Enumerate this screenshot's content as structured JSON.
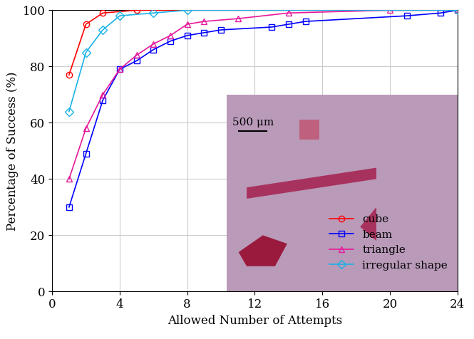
{
  "chart_data": {
    "type": "line",
    "x_label": "Allowed Number of Attempts",
    "y_label": "Percentage of Success (%)",
    "annotations": [
      "500 μm"
    ],
    "series": [
      {
        "name": "cube",
        "color": "#ff0000",
        "marker": "o",
        "x": [
          1,
          2,
          3,
          5,
          24
        ],
        "values": [
          77,
          95,
          99,
          100,
          100
        ]
      },
      {
        "name": "beam",
        "color": "#0000ff",
        "marker": "s",
        "x": [
          1,
          2,
          3,
          4,
          5,
          6,
          7,
          8,
          9,
          10,
          13,
          14,
          15,
          21,
          23,
          24
        ],
        "values": [
          30,
          49,
          68,
          79,
          82,
          86,
          89,
          91,
          92,
          93,
          94,
          95,
          96,
          98,
          99,
          100
        ]
      },
      {
        "name": "triangle",
        "color": "#e6199b",
        "marker": "^",
        "x": [
          1,
          2,
          3,
          4,
          5,
          6,
          7,
          8,
          9,
          11,
          14,
          20,
          24
        ],
        "values": [
          40,
          58,
          70,
          79,
          84,
          88,
          91,
          95,
          96,
          97,
          99,
          100,
          100
        ]
      },
      {
        "name": "irregular shape",
        "color": "#1ab2e6",
        "marker": "D",
        "x": [
          1,
          2,
          3,
          4,
          6,
          8,
          24
        ],
        "values": [
          64,
          85,
          93,
          98,
          99,
          100,
          100
        ]
      }
    ],
    "xlim": [
      0,
      24
    ],
    "xticks": [
      0,
      4,
      8,
      12,
      16,
      20,
      24
    ],
    "ylim": [
      0,
      100
    ],
    "yticks": [
      0,
      20,
      40,
      60,
      80,
      100
    ],
    "grid": true,
    "legend": "lower right"
  }
}
